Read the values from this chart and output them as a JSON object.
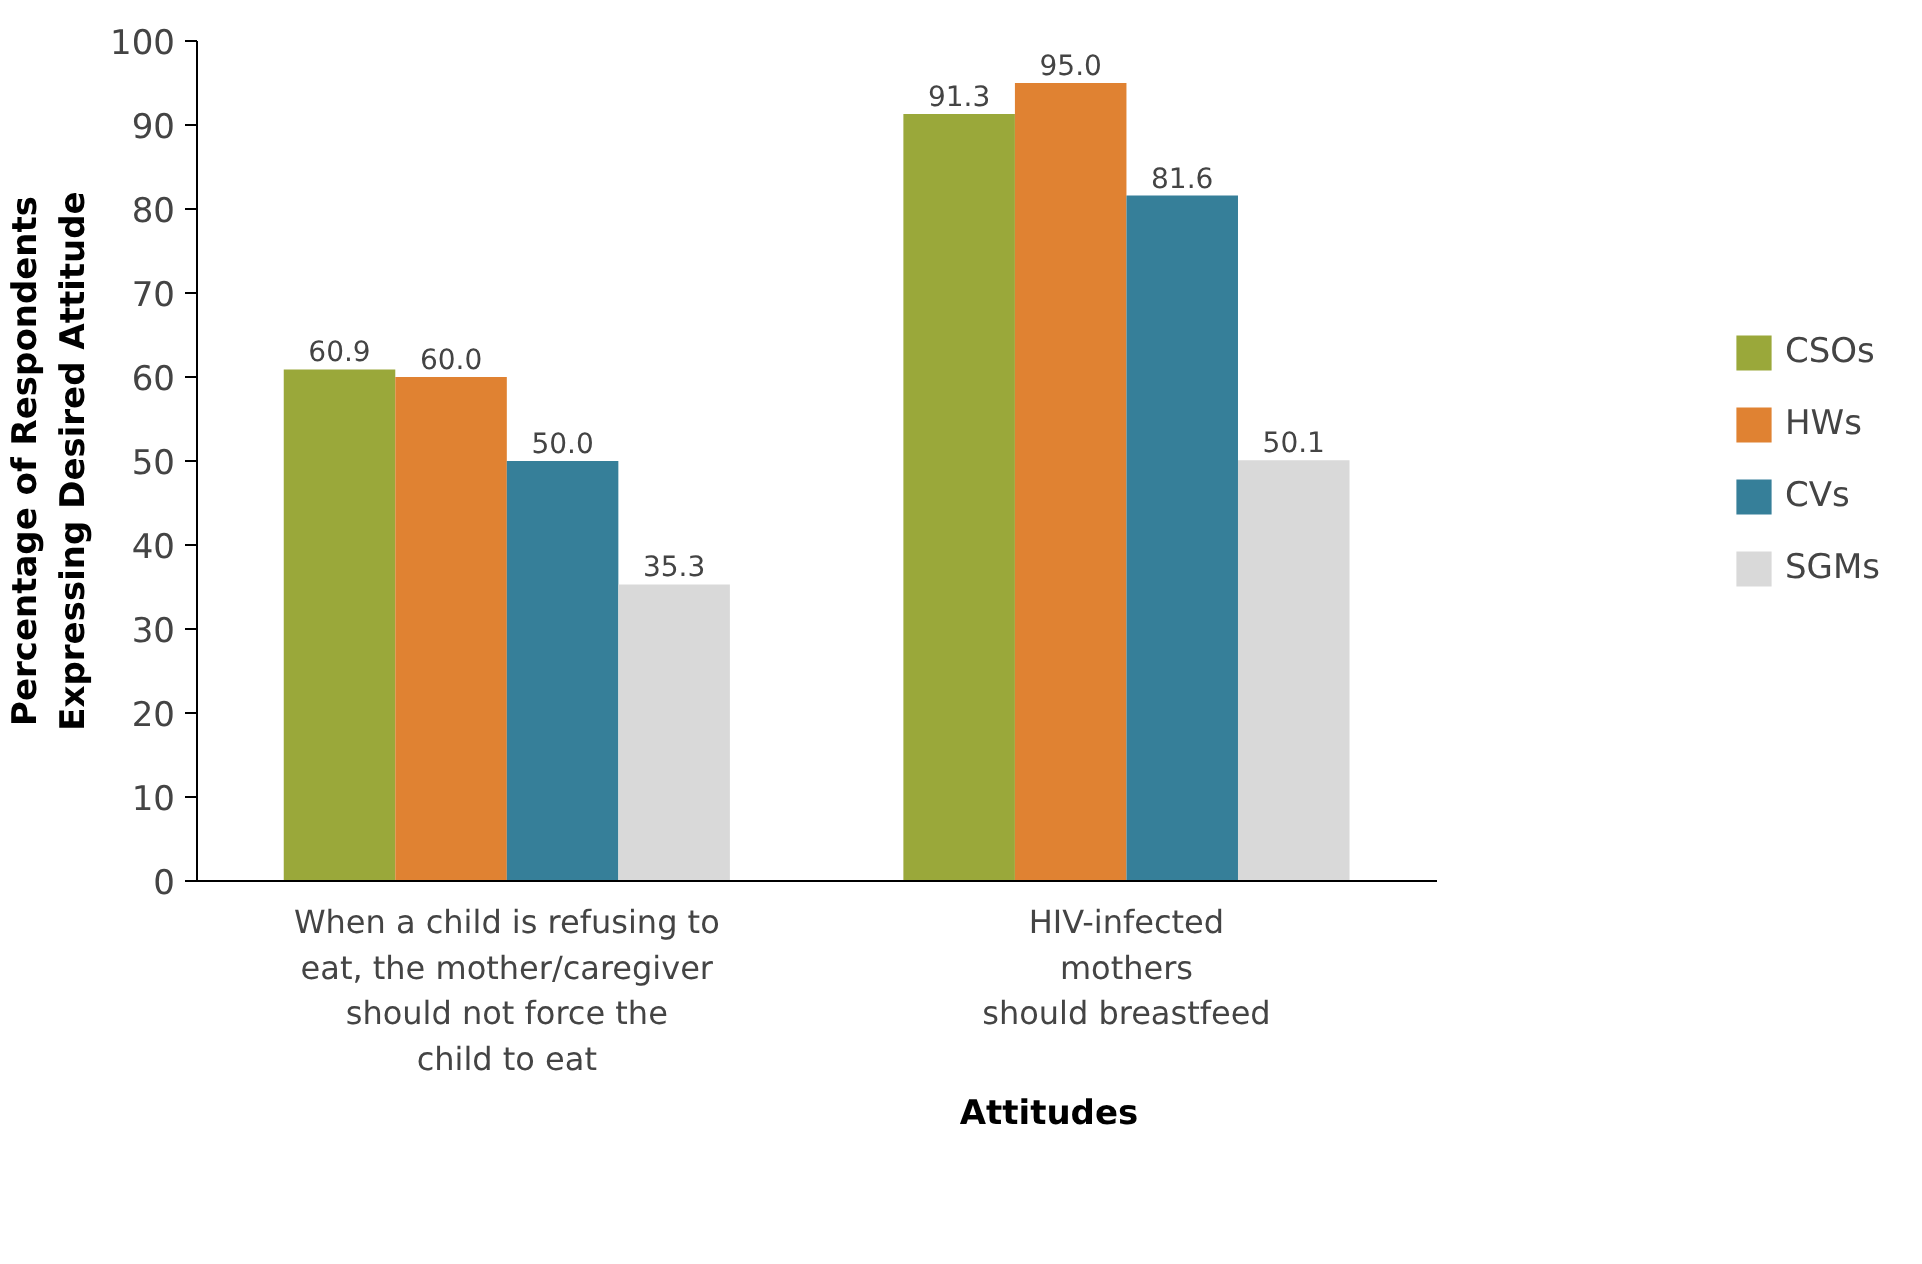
{
  "chart_data": {
    "type": "bar",
    "xlabel": "Attitudes",
    "ylabel": "Percentage of Respondents\nExpressing Desired Attitude",
    "categories": [
      "When a child is refusing to\neat, the mother/caregiver\nshould not force the\nchild to eat",
      "HIV-infected\nmothers\nshould breastfeed"
    ],
    "series": [
      {
        "name": "CSOs",
        "color": "#9aa83a",
        "values": [
          60.9,
          91.3
        ],
        "value_labels": [
          "60.9",
          "91.3"
        ]
      },
      {
        "name": "HWs",
        "color": "#e08232",
        "values": [
          60.0,
          95.0
        ],
        "value_labels": [
          "60.0",
          "95.0"
        ]
      },
      {
        "name": "CVs",
        "color": "#367f99",
        "values": [
          50.0,
          81.6
        ],
        "value_labels": [
          "50.0",
          "81.6"
        ]
      },
      {
        "name": "SGMs",
        "color": "#d9d9d9",
        "values": [
          35.3,
          50.1
        ],
        "value_labels": [
          "35.3",
          "50.1"
        ]
      }
    ],
    "ylim": [
      0,
      100
    ],
    "yticks": [
      0,
      10,
      20,
      30,
      40,
      50,
      60,
      70,
      80,
      90,
      100
    ],
    "data_labels": true,
    "legend": "right",
    "grid": false
  }
}
